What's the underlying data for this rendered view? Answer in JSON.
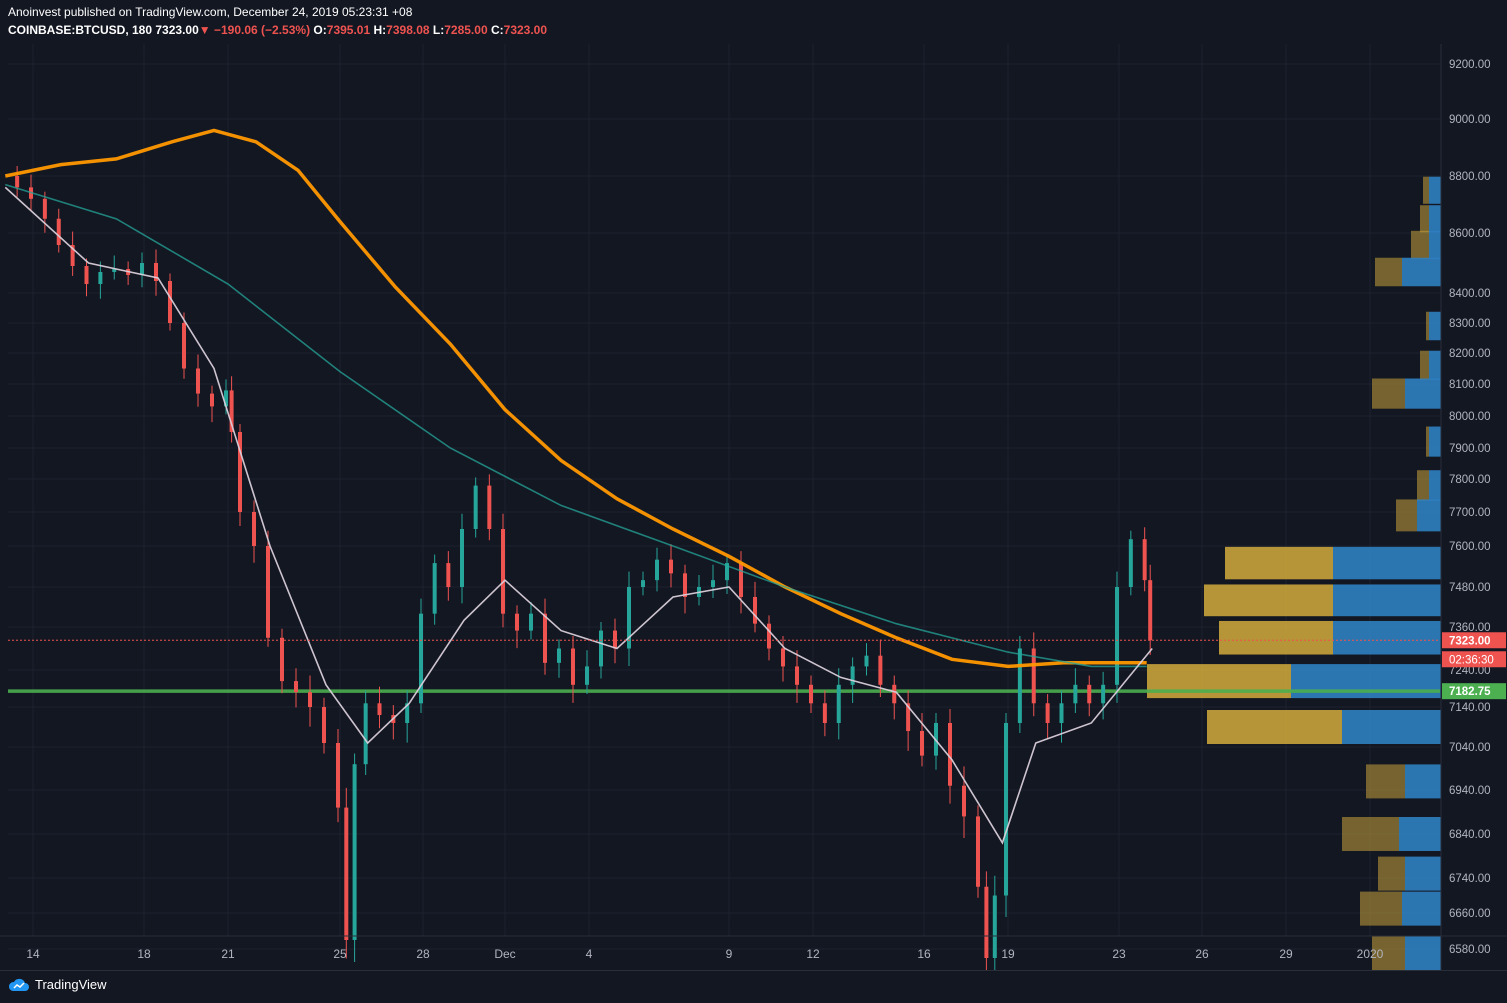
{
  "header": {
    "publisher_line": "Anoinvest published on TradingView.com, December 24, 2019 05:23:31 +08",
    "symbol": "COINBASE:BTCUSD, 180",
    "last": "7323.00",
    "arrow": "▼",
    "change": "−190.06 (−2.53%)",
    "o_label": "O:",
    "o_value": "7395.01",
    "h_label": "H:",
    "h_value": "7398.08",
    "l_label": "L:",
    "l_value": "7285.00",
    "c_label": "C:",
    "c_value": "7323.00"
  },
  "footer": {
    "brand": "TradingView"
  },
  "colors": {
    "background": "#131722",
    "up": "#26a69a",
    "down": "#ef5350",
    "ma_orange": "#ff9800",
    "ma_white": "#d8cdd9",
    "support_green": "#4caf50",
    "vp_yellow": "#c9a33b",
    "vp_blue": "#2f7fc1",
    "price_tag_red": "#ef5350"
  },
  "chart_data": {
    "type": "candlestick",
    "ylim": [
      6500,
      9300
    ],
    "y_ticks": [
      9200,
      9000,
      8800,
      8600,
      8400,
      8300,
      8200,
      8100,
      8000,
      7900,
      7800,
      7700,
      7600,
      7480,
      7360,
      7240,
      7140,
      7040,
      6940,
      6840,
      6740,
      6660,
      6580
    ],
    "y_tick_labels": [
      "9200.00",
      "9000.00",
      "8800.00",
      "8600.00",
      "8400.00",
      "8300.00",
      "8200.00",
      "8100.00",
      "8000.00",
      "7900.00",
      "7800.00",
      "7700.00",
      "7600.00",
      "7480.00",
      "7360.00",
      "7240.00",
      "7140.00",
      "7040.00",
      "6940.00",
      "6840.00",
      "6740.00",
      "6660.00",
      "6580.00"
    ],
    "x_tick_labels": [
      "14",
      "18",
      "21",
      "25",
      "28",
      "Dec",
      "4",
      "9",
      "12",
      "16",
      "19",
      "23",
      "26",
      "29",
      "2020"
    ],
    "x_tick_days": [
      0,
      4,
      7,
      11,
      14,
      17,
      20,
      25,
      28,
      32,
      35,
      39,
      42,
      45,
      48
    ],
    "price_labels": [
      {
        "value": 7323.0,
        "text": "7323.00"
      },
      {
        "value": 7182.75,
        "text": "7182.75"
      }
    ],
    "countdown": "02:36:30",
    "support_level": 7182.75,
    "close_points": [
      [
        -1.0,
        8800
      ],
      [
        -0.5,
        8760
      ],
      [
        0.0,
        8720
      ],
      [
        0.5,
        8650
      ],
      [
        1.0,
        8560
      ],
      [
        1.5,
        8490
      ],
      [
        2.0,
        8430
      ],
      [
        2.5,
        8470
      ],
      [
        3.0,
        8480
      ],
      [
        3.5,
        8460
      ],
      [
        4.0,
        8500
      ],
      [
        4.5,
        8440
      ],
      [
        5.0,
        8300
      ],
      [
        5.5,
        8150
      ],
      [
        6.0,
        8070
      ],
      [
        6.5,
        8030
      ],
      [
        7.0,
        8080
      ],
      [
        7.2,
        7950
      ],
      [
        7.5,
        7700
      ],
      [
        8.0,
        7600
      ],
      [
        8.5,
        7330
      ],
      [
        9.0,
        7210
      ],
      [
        9.5,
        7180
      ],
      [
        10.0,
        7140
      ],
      [
        10.5,
        7050
      ],
      [
        11.0,
        6900
      ],
      [
        11.3,
        6600
      ],
      [
        11.6,
        7000
      ],
      [
        12.0,
        7150
      ],
      [
        12.5,
        7120
      ],
      [
        13.0,
        7100
      ],
      [
        13.5,
        7150
      ],
      [
        14.0,
        7400
      ],
      [
        14.5,
        7550
      ],
      [
        15.0,
        7480
      ],
      [
        15.5,
        7650
      ],
      [
        16.0,
        7780
      ],
      [
        16.5,
        7650
      ],
      [
        17.0,
        7400
      ],
      [
        17.5,
        7350
      ],
      [
        18.0,
        7400
      ],
      [
        18.5,
        7260
      ],
      [
        19.0,
        7300
      ],
      [
        19.5,
        7200
      ],
      [
        20.0,
        7250
      ],
      [
        20.5,
        7350
      ],
      [
        21.0,
        7300
      ],
      [
        21.5,
        7480
      ],
      [
        22.0,
        7500
      ],
      [
        22.5,
        7560
      ],
      [
        23.0,
        7520
      ],
      [
        23.5,
        7450
      ],
      [
        24.0,
        7480
      ],
      [
        24.5,
        7500
      ],
      [
        25.0,
        7550
      ],
      [
        25.5,
        7450
      ],
      [
        26.0,
        7370
      ],
      [
        26.5,
        7300
      ],
      [
        27.0,
        7250
      ],
      [
        27.5,
        7200
      ],
      [
        28.0,
        7150
      ],
      [
        28.5,
        7100
      ],
      [
        29.0,
        7200
      ],
      [
        29.5,
        7250
      ],
      [
        30.0,
        7280
      ],
      [
        30.5,
        7200
      ],
      [
        31.0,
        7150
      ],
      [
        31.5,
        7080
      ],
      [
        32.0,
        7020
      ],
      [
        32.5,
        7100
      ],
      [
        33.0,
        6950
      ],
      [
        33.5,
        6880
      ],
      [
        34.0,
        6720
      ],
      [
        34.3,
        6560
      ],
      [
        34.6,
        6700
      ],
      [
        35.0,
        7100
      ],
      [
        35.5,
        7300
      ],
      [
        36.0,
        7150
      ],
      [
        36.5,
        7100
      ],
      [
        37.0,
        7150
      ],
      [
        37.5,
        7200
      ],
      [
        38.0,
        7150
      ],
      [
        38.5,
        7200
      ],
      [
        39.0,
        7480
      ],
      [
        39.5,
        7620
      ],
      [
        40.0,
        7500
      ],
      [
        40.2,
        7323
      ]
    ],
    "series": [
      {
        "name": "",
        "color": "#ff9800",
        "points": [
          [
            -1.0,
            8800
          ],
          [
            1.0,
            8840
          ],
          [
            3.0,
            8860
          ],
          [
            5.0,
            8920
          ],
          [
            6.5,
            8960
          ],
          [
            8.0,
            8920
          ],
          [
            9.5,
            8820
          ],
          [
            11.0,
            8640
          ],
          [
            13.0,
            8420
          ],
          [
            15.0,
            8230
          ],
          [
            17.0,
            8020
          ],
          [
            19.0,
            7860
          ],
          [
            21.0,
            7740
          ],
          [
            23.0,
            7650
          ],
          [
            25.0,
            7570
          ],
          [
            27.0,
            7480
          ],
          [
            29.0,
            7400
          ],
          [
            31.0,
            7330
          ],
          [
            33.0,
            7270
          ],
          [
            35.0,
            7250
          ],
          [
            37.0,
            7260
          ],
          [
            40.0,
            7260
          ]
        ]
      },
      {
        "name": "",
        "color": "#26a69a",
        "points": [
          [
            -1.0,
            8770
          ],
          [
            3.0,
            8650
          ],
          [
            7.0,
            8430
          ],
          [
            11.0,
            8140
          ],
          [
            15.0,
            7900
          ],
          [
            19.0,
            7720
          ],
          [
            23.0,
            7600
          ],
          [
            27.0,
            7480
          ],
          [
            31.0,
            7370
          ],
          [
            35.0,
            7290
          ],
          [
            38.0,
            7250
          ],
          [
            40.0,
            7250
          ]
        ]
      },
      {
        "name": "",
        "color": "#d8cdd9",
        "points": [
          [
            -1.0,
            8760
          ],
          [
            2.0,
            8500
          ],
          [
            4.5,
            8450
          ],
          [
            6.5,
            8150
          ],
          [
            8.5,
            7600
          ],
          [
            10.5,
            7200
          ],
          [
            12.0,
            7050
          ],
          [
            13.5,
            7150
          ],
          [
            15.5,
            7380
          ],
          [
            17.0,
            7500
          ],
          [
            19.0,
            7350
          ],
          [
            21.0,
            7300
          ],
          [
            23.0,
            7450
          ],
          [
            25.0,
            7480
          ],
          [
            27.0,
            7300
          ],
          [
            29.0,
            7220
          ],
          [
            31.0,
            7180
          ],
          [
            33.0,
            7010
          ],
          [
            34.8,
            6820
          ],
          [
            36.0,
            7050
          ],
          [
            38.0,
            7100
          ],
          [
            40.2,
            7300
          ]
        ]
      }
    ],
    "volume_profile": [
      {
        "price": 8750,
        "sell": 2,
        "buy": 4
      },
      {
        "price": 8650,
        "sell": 3,
        "buy": 4
      },
      {
        "price": 8560,
        "sell": 6,
        "buy": 4
      },
      {
        "price": 8470,
        "sell": 9,
        "buy": 13
      },
      {
        "price": 8290,
        "sell": 1,
        "buy": 4
      },
      {
        "price": 8160,
        "sell": 3,
        "buy": 4
      },
      {
        "price": 8070,
        "sell": 11,
        "buy": 12
      },
      {
        "price": 7920,
        "sell": 1,
        "buy": 4
      },
      {
        "price": 7780,
        "sell": 4,
        "buy": 4
      },
      {
        "price": 7690,
        "sell": 7,
        "buy": 8
      },
      {
        "price": 7550,
        "sell": 36,
        "buy": 36
      },
      {
        "price": 7440,
        "sell": 43,
        "buy": 36
      },
      {
        "price": 7330,
        "sell": 38,
        "buy": 36
      },
      {
        "price": 7210,
        "sell": 48,
        "buy": 50
      },
      {
        "price": 7090,
        "sell": 45,
        "buy": 33
      },
      {
        "price": 6960,
        "sell": 13,
        "buy": 12
      },
      {
        "price": 6840,
        "sell": 19,
        "buy": 14
      },
      {
        "price": 6750,
        "sell": 9,
        "buy": 12
      },
      {
        "price": 6670,
        "sell": 14,
        "buy": 13
      },
      {
        "price": 6570,
        "sell": 11,
        "buy": 12
      }
    ]
  }
}
